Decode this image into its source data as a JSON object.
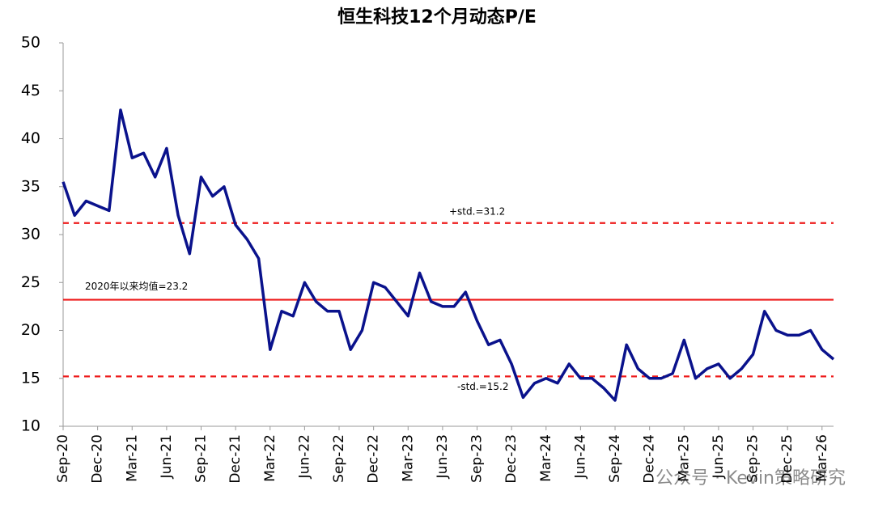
{
  "chart_data": {
    "type": "line",
    "title": "恒生科技12个月动态P/E",
    "categories": [
      "Sep-20",
      null,
      null,
      "Dec-20",
      null,
      null,
      "Mar-21",
      null,
      null,
      "Jun-21",
      null,
      null,
      "Sep-21",
      null,
      null,
      "Dec-21",
      null,
      null,
      "Mar-22",
      null,
      null,
      "Jun-22",
      null,
      null,
      "Sep-22",
      null,
      null,
      "Dec-22",
      null,
      null,
      "Mar-23",
      null,
      null,
      "Jun-23",
      null,
      null,
      "Sep-23",
      null,
      null,
      "Dec-23",
      null,
      null,
      "Mar-24",
      null,
      null,
      "Jun-24",
      null,
      null,
      "Sep-24",
      null,
      null,
      "Dec-24",
      null,
      null,
      "Mar-25",
      null,
      null,
      "Jun-25",
      null,
      null,
      "Sep-25",
      null,
      null,
      "Dec-25",
      null,
      null,
      "Mar-26",
      null
    ],
    "values": [
      35.5,
      32,
      33.5,
      33,
      32.5,
      43,
      38,
      38.5,
      36,
      39,
      32,
      28,
      36,
      34,
      35,
      31,
      29.5,
      27.5,
      18,
      22,
      21.5,
      25,
      23,
      22,
      22,
      18,
      20,
      25,
      24.5,
      23,
      21.5,
      26,
      23,
      22.5,
      22.5,
      24,
      21,
      18.5,
      19,
      16.5,
      13,
      14.5,
      15,
      14.5,
      16.5,
      15,
      15,
      14,
      12.7,
      18.5,
      16,
      15,
      15,
      15.5,
      19,
      15,
      16,
      16.5,
      15,
      16,
      17.5,
      22,
      20,
      19.5,
      19.5,
      20,
      18,
      17
    ],
    "color": "#0a128c",
    "ylim": [
      10,
      50
    ],
    "yticks": [
      10,
      15,
      20,
      25,
      30,
      35,
      40,
      45,
      50
    ],
    "reference_lines": [
      {
        "value": 31.2,
        "label": "+std.=31.2",
        "style": "dashed",
        "color": "#ee1c1c"
      },
      {
        "value": 23.2,
        "label": "2020年以来均值=23.2",
        "style": "solid",
        "color": "#ee1c1c"
      },
      {
        "value": 15.2,
        "label": "-std.=15.2",
        "style": "dashed",
        "color": "#ee1c1c"
      }
    ],
    "watermark": "公众号 · Kevin策略研究",
    "grid": false
  }
}
